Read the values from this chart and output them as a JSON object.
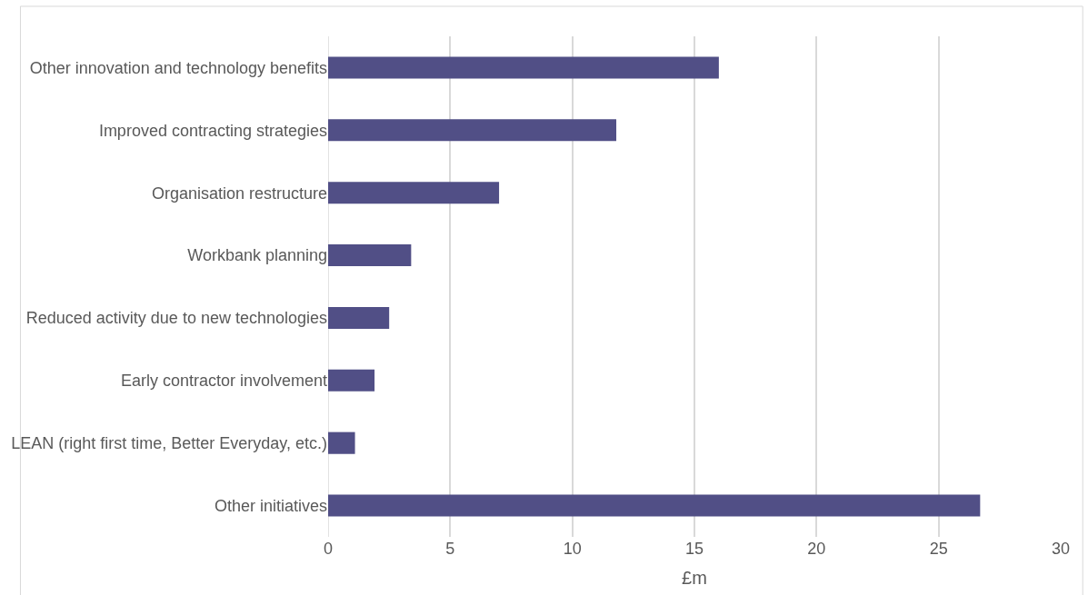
{
  "chart_data": {
    "type": "bar",
    "orientation": "horizontal",
    "xlabel": "£m",
    "categories": [
      "Other innovation and technology benefits",
      "Improved contracting strategies",
      "Organisation restructure",
      "Workbank planning",
      "Reduced activity due to new technologies",
      "Early contractor involvement",
      "LEAN (right first time, Better Everyday, etc.)",
      "Other initiatives"
    ],
    "values": [
      16.0,
      11.8,
      7.0,
      3.4,
      2.5,
      1.9,
      1.1,
      26.7
    ],
    "color": "#514f86",
    "xlim": [
      0,
      30
    ],
    "xticks": [
      0,
      5,
      10,
      15,
      20,
      25,
      30
    ],
    "grid": "x",
    "legend": false
  }
}
